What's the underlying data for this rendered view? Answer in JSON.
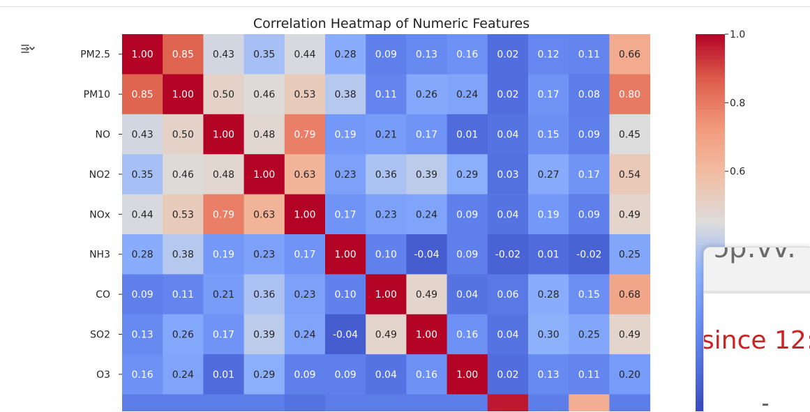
{
  "chart_data": {
    "type": "heatmap",
    "title": "Correlation Heatmap of Numeric Features",
    "rows": [
      "PM2.5",
      "PM10",
      "NO",
      "NO2",
      "NOx",
      "NH3",
      "CO",
      "SO2",
      "O3"
    ],
    "columns": 13,
    "values": [
      [
        1.0,
        0.85,
        0.43,
        0.35,
        0.44,
        0.28,
        0.09,
        0.13,
        0.16,
        0.02,
        0.12,
        0.11,
        0.66
      ],
      [
        0.85,
        1.0,
        0.5,
        0.46,
        0.53,
        0.38,
        0.11,
        0.26,
        0.24,
        0.02,
        0.17,
        0.08,
        0.8
      ],
      [
        0.43,
        0.5,
        1.0,
        0.48,
        0.79,
        0.19,
        0.21,
        0.17,
        0.01,
        0.04,
        0.15,
        0.09,
        0.45
      ],
      [
        0.35,
        0.46,
        0.48,
        1.0,
        0.63,
        0.23,
        0.36,
        0.39,
        0.29,
        0.03,
        0.27,
        0.17,
        0.54
      ],
      [
        0.44,
        0.53,
        0.79,
        0.63,
        1.0,
        0.17,
        0.23,
        0.24,
        0.09,
        0.04,
        0.19,
        0.09,
        0.49
      ],
      [
        0.28,
        0.38,
        0.19,
        0.23,
        0.17,
        1.0,
        0.1,
        -0.04,
        0.09,
        -0.02,
        0.01,
        -0.02,
        0.25
      ],
      [
        0.09,
        0.11,
        0.21,
        0.36,
        0.23,
        0.1,
        1.0,
        0.49,
        0.04,
        0.06,
        0.28,
        0.15,
        0.68
      ],
      [
        0.13,
        0.26,
        0.17,
        0.39,
        0.24,
        -0.04,
        0.49,
        1.0,
        0.16,
        0.04,
        0.3,
        0.25,
        0.49
      ],
      [
        0.16,
        0.24,
        0.01,
        0.29,
        0.09,
        0.09,
        0.04,
        0.16,
        1.0,
        0.02,
        0.13,
        0.11,
        0.2
      ]
    ],
    "partial_next_row_values": [
      0.08,
      0.08,
      0.08,
      0.08,
      0.04,
      0.08,
      0.08,
      0.08,
      0.08,
      0.97,
      0.08,
      0.65,
      0.08
    ],
    "colormap": "coolwarm",
    "color_range": [
      -0.1,
      1.0
    ],
    "colorbar_ticks": [
      "1.0",
      "0.8",
      "0.6"
    ],
    "annotations": "2-decimal values in every cell"
  },
  "ui": {
    "output_icon": "output-toggle-icon",
    "overlay_top_text": "ɔ̈p:vv.",
    "overlay_text": "since 12:"
  }
}
